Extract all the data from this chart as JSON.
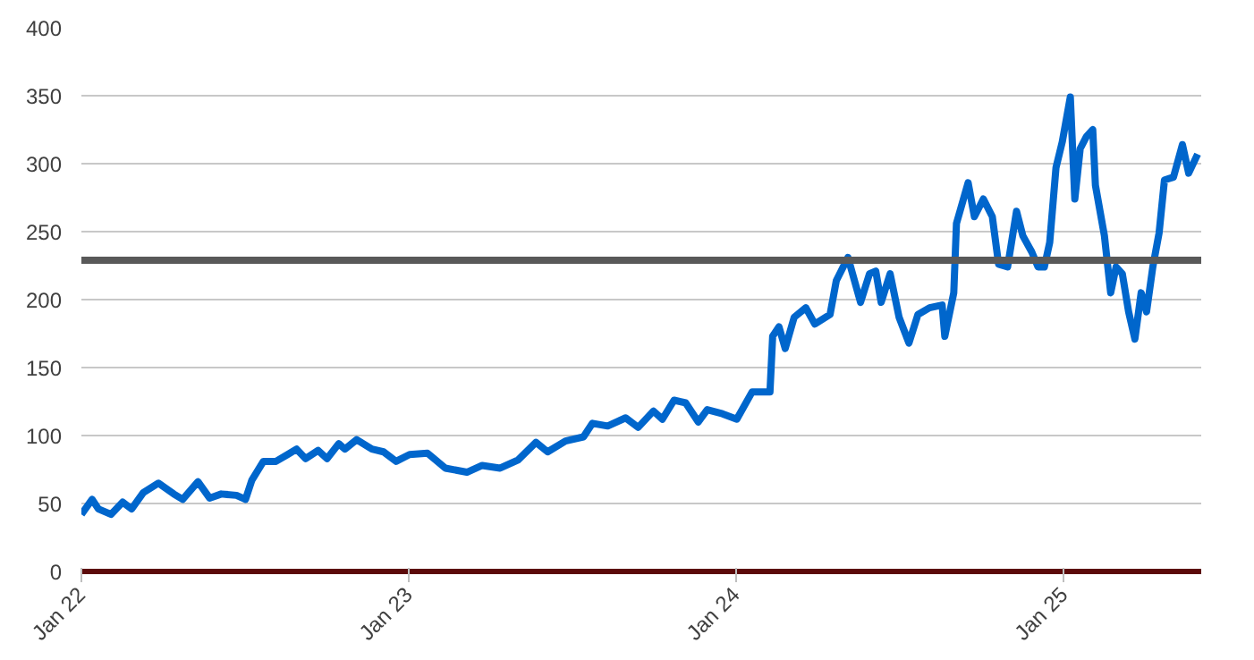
{
  "chart_data": {
    "type": "line",
    "grid": "y",
    "marker": "none",
    "line_style": "solid",
    "xlim": [
      "2022-01-01",
      "2025-06-03"
    ],
    "ylim": [
      0,
      400
    ],
    "xticks": [
      {
        "value": "2022-01-01",
        "label": "Jan 22"
      },
      {
        "value": "2023-01-01",
        "label": "Jan 23"
      },
      {
        "value": "2024-01-01",
        "label": "Jan 24"
      },
      {
        "value": "2025-01-01",
        "label": "Jan 25"
      }
    ],
    "yticks": [
      0,
      50,
      100,
      150,
      200,
      250,
      300,
      350,
      400
    ],
    "ref_lines": [
      {
        "axis": "y",
        "value": 229,
        "color": "#595959"
      }
    ],
    "series": [
      {
        "color": "#0066cc",
        "x": [
          "2022-01-01",
          "2022-01-13",
          "2022-01-20",
          "2022-02-03",
          "2022-02-16",
          "2022-02-26",
          "2022-03-11",
          "2022-03-28",
          "2022-04-14",
          "2022-04-24",
          "2022-05-11",
          "2022-05-24",
          "2022-06-06",
          "2022-06-23",
          "2022-07-03",
          "2022-07-10",
          "2022-07-23",
          "2022-08-06",
          "2022-08-19",
          "2022-08-29",
          "2022-09-08",
          "2022-09-22",
          "2022-10-02",
          "2022-10-15",
          "2022-10-22",
          "2022-11-04",
          "2022-11-21",
          "2022-12-04",
          "2022-12-18",
          "2023-01-02",
          "2023-01-22",
          "2023-02-11",
          "2023-03-07",
          "2023-03-24",
          "2023-04-13",
          "2023-05-03",
          "2023-05-23",
          "2023-06-05",
          "2023-06-25",
          "2023-07-15",
          "2023-07-25",
          "2023-08-11",
          "2023-08-31",
          "2023-09-14",
          "2023-10-01",
          "2023-10-11",
          "2023-10-24",
          "2023-11-06",
          "2023-11-20",
          "2023-11-30",
          "2023-12-17",
          "2024-01-02",
          "2024-01-19",
          "2024-02-08",
          "2024-02-11",
          "2024-02-18",
          "2024-02-25",
          "2024-03-06",
          "2024-03-19",
          "2024-03-29",
          "2024-04-15",
          "2024-04-22",
          "2024-05-05",
          "2024-05-19",
          "2024-05-29",
          "2024-06-05",
          "2024-06-11",
          "2024-06-21",
          "2024-07-01",
          "2024-07-12",
          "2024-07-22",
          "2024-08-04",
          "2024-08-18",
          "2024-08-21",
          "2024-08-31",
          "2024-09-03",
          "2024-09-16",
          "2024-09-23",
          "2024-10-03",
          "2024-10-13",
          "2024-10-20",
          "2024-10-30",
          "2024-11-09",
          "2024-11-16",
          "2024-11-26",
          "2024-12-03",
          "2024-12-10",
          "2024-12-16",
          "2024-12-23",
          "2024-12-30",
          "2025-01-08",
          "2025-01-13",
          "2025-01-19",
          "2025-01-26",
          "2025-02-02",
          "2025-02-05",
          "2025-02-15",
          "2025-02-22",
          "2025-02-28",
          "2025-03-07",
          "2025-03-14",
          "2025-03-21",
          "2025-03-28",
          "2025-04-03",
          "2025-04-10",
          "2025-04-17",
          "2025-04-23",
          "2025-05-03",
          "2025-05-13",
          "2025-05-20",
          "2025-05-30"
        ],
        "values": [
          42,
          53,
          46,
          42,
          51,
          46,
          58,
          65,
          57,
          53,
          66,
          54,
          57,
          56,
          53,
          67,
          81,
          81,
          86,
          90,
          83,
          89,
          83,
          94,
          90,
          97,
          90,
          88,
          81,
          86,
          87,
          76,
          73,
          78,
          76,
          82,
          95,
          88,
          96,
          99,
          109,
          107,
          113,
          106,
          118,
          112,
          126,
          124,
          110,
          119,
          116,
          112,
          132,
          132,
          173,
          180,
          164,
          187,
          194,
          182,
          189,
          214,
          231,
          198,
          219,
          221,
          198,
          219,
          187,
          168,
          189,
          194,
          196,
          173,
          205,
          256,
          286,
          261,
          274,
          261,
          226,
          224,
          265,
          247,
          235,
          224,
          224,
          242,
          297,
          316,
          349,
          274,
          311,
          320,
          325,
          284,
          247,
          205,
          224,
          219,
          191,
          171,
          205,
          191,
          224,
          249,
          288,
          290,
          314,
          293,
          307
        ]
      }
    ]
  }
}
